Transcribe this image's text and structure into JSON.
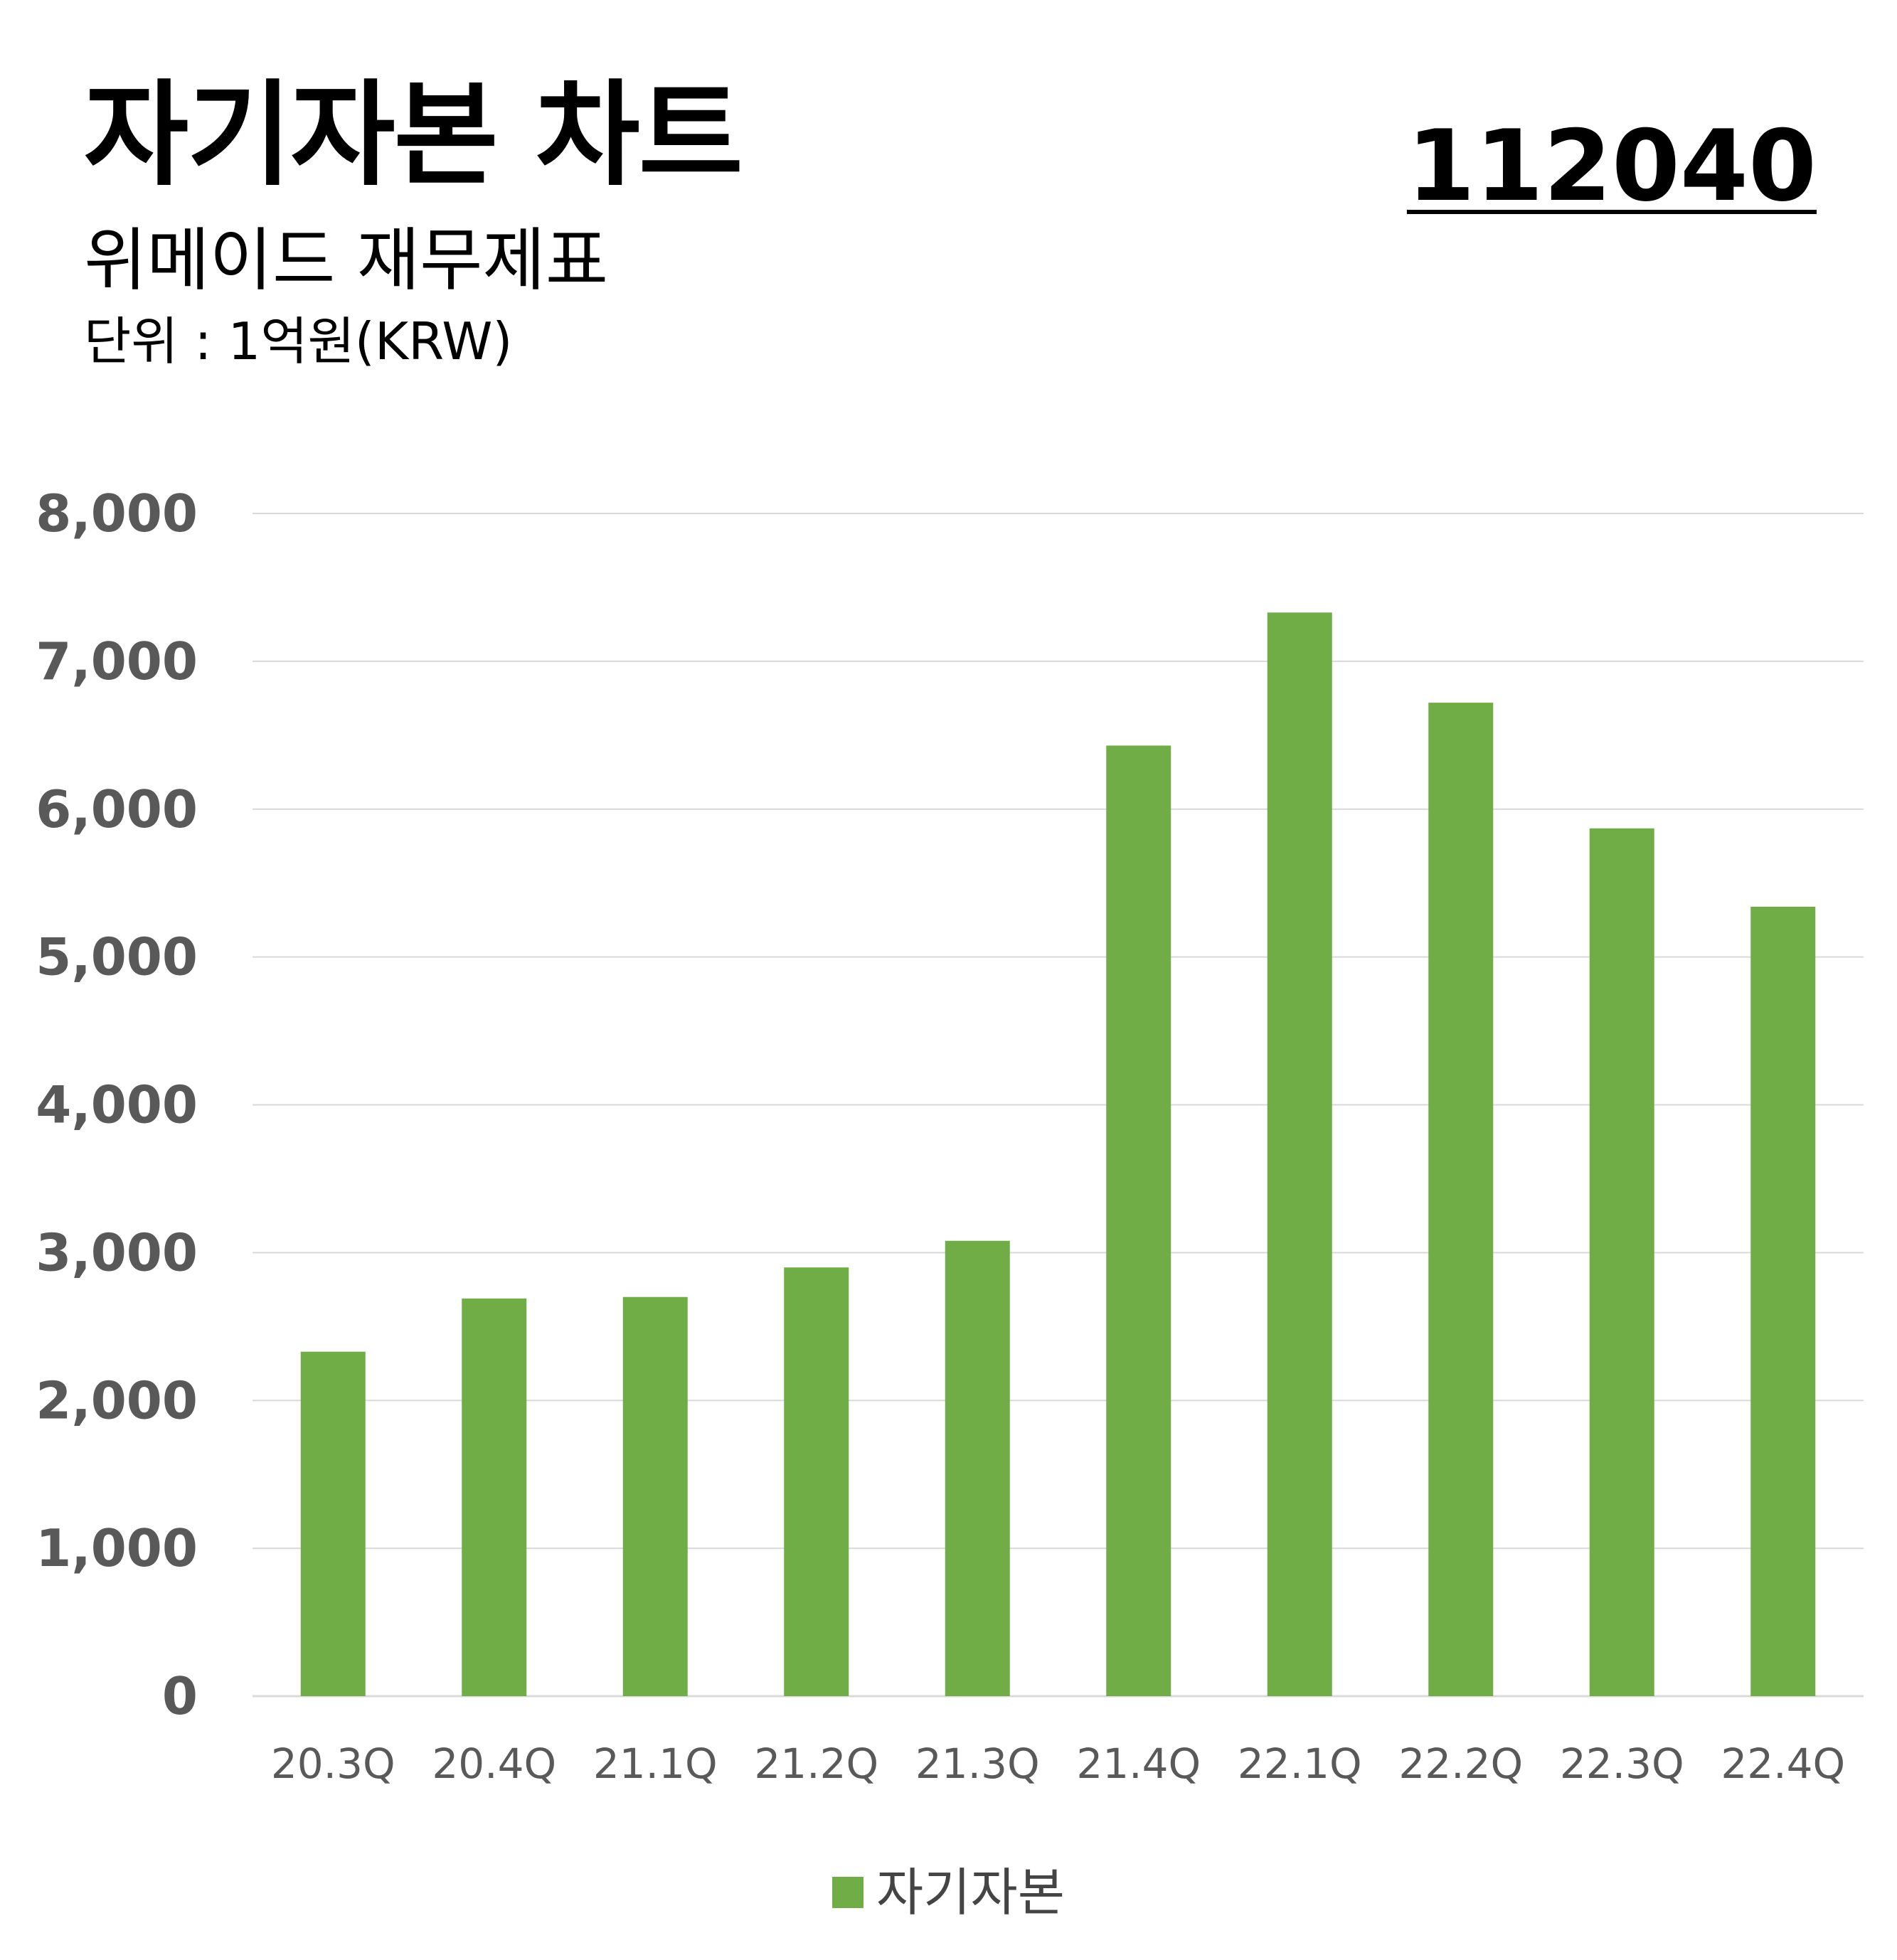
{
  "header": {
    "title": "자기자본 차트",
    "subtitle": "위메이드 재무제표",
    "unit": "단위 : 1억원(KRW)",
    "code": "112040"
  },
  "colors": {
    "bar": "#70AD47",
    "grid": "#D9D9D9",
    "axis_text": "#595959",
    "tick_text": "#595959"
  },
  "chart_data": {
    "type": "bar",
    "title": "",
    "xlabel": "",
    "ylabel": "",
    "categories": [
      "20.3Q",
      "20.4Q",
      "21.1Q",
      "21.2Q",
      "21.3Q",
      "21.4Q",
      "22.1Q",
      "22.2Q",
      "22.3Q",
      "22.4Q"
    ],
    "series": [
      {
        "name": "자기자본",
        "values": [
          2330,
          2690,
          2700,
          2900,
          3080,
          6430,
          7330,
          6720,
          5870,
          5340
        ]
      }
    ],
    "ylim": [
      0,
      8000
    ],
    "yticks": [
      "0",
      "1,000",
      "2,000",
      "3,000",
      "4,000",
      "5,000",
      "6,000",
      "7,000",
      "8,000"
    ],
    "ytick_values": [
      0,
      1000,
      2000,
      3000,
      4000,
      5000,
      6000,
      7000,
      8000
    ],
    "grid": true,
    "legend": "bottom-center"
  }
}
